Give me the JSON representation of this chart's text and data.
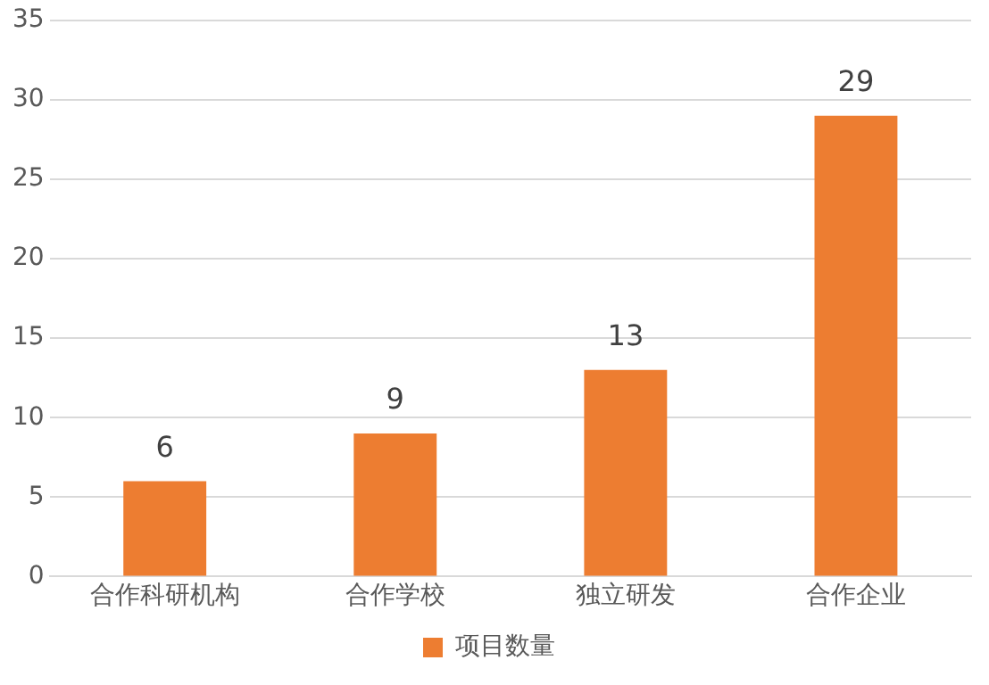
{
  "chart_data": {
    "type": "bar",
    "categories": [
      "合作科研机构",
      "合作学校",
      "独立研发",
      "合作企业"
    ],
    "series": [
      {
        "name": "项目数量",
        "color": "#ed7d31",
        "values": [
          6,
          9,
          13,
          29
        ]
      }
    ],
    "ylim": [
      0,
      35
    ],
    "yticks": [
      0,
      5,
      10,
      15,
      20,
      25,
      30,
      35
    ],
    "grid": "y",
    "legend": "bottom",
    "data_labels": true
  }
}
